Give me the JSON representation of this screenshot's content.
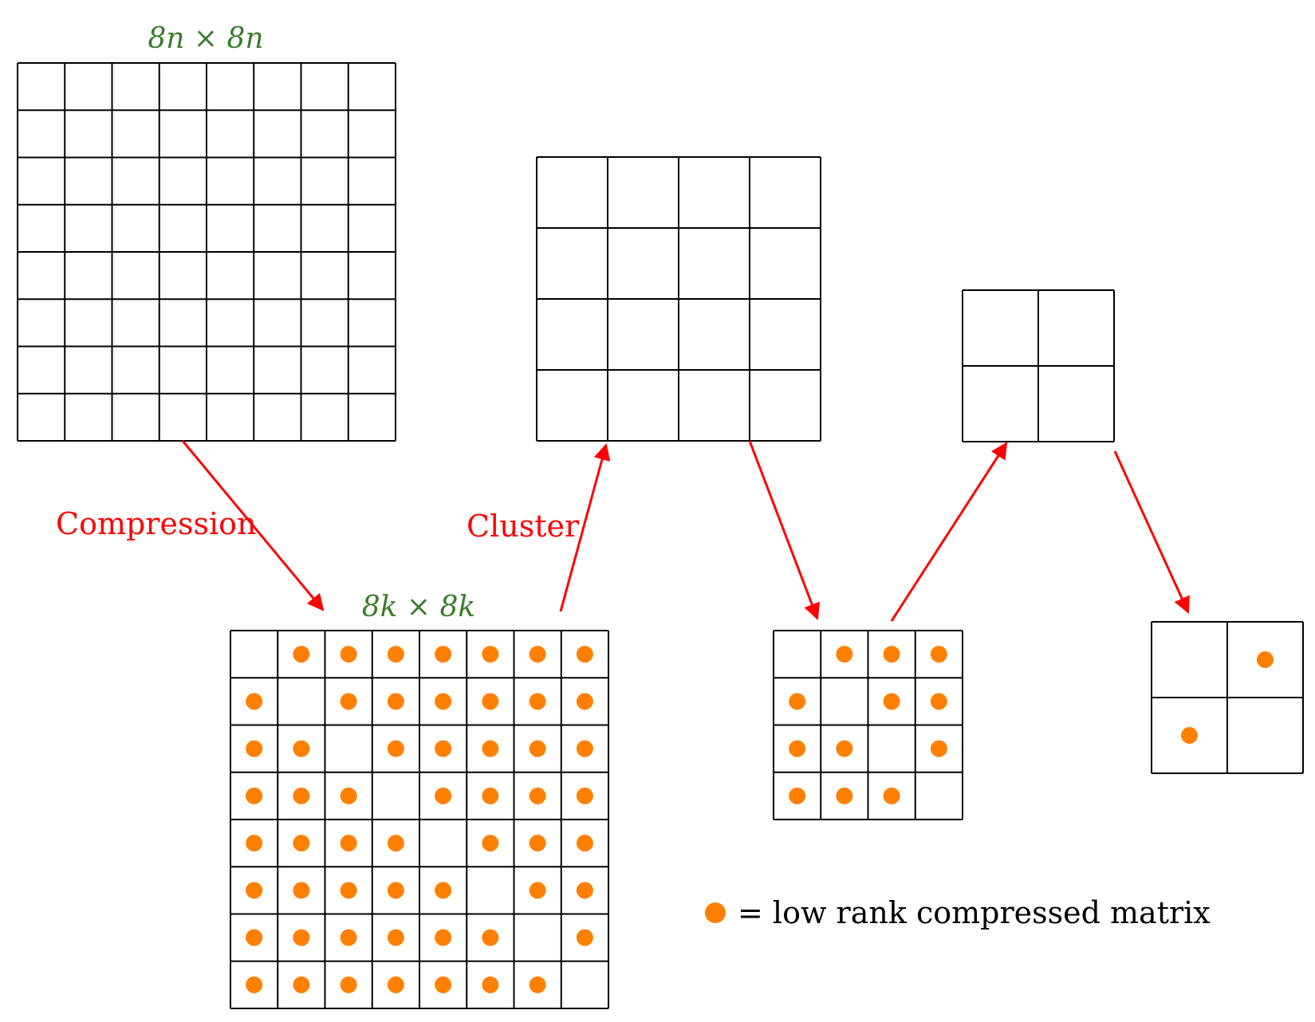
{
  "colors": {
    "dot": "#ff8000",
    "arrow": "#ff0000",
    "dimension_label": "#3a7d2c",
    "grid": "#000000"
  },
  "labels": {
    "top_matrix_size": "8n × 8n",
    "compressed_matrix_size": "8k × 8k",
    "compression": "Compression",
    "cluster": "Cluster",
    "legend_text": "= low rank compressed matrix"
  },
  "matrices": [
    {
      "id": "original-8n",
      "n": 8,
      "dots": "none"
    },
    {
      "id": "cluster-4x4",
      "n": 4,
      "dots": "none"
    },
    {
      "id": "cluster-2x2",
      "n": 2,
      "dots": "none"
    },
    {
      "id": "compressed-8k",
      "n": 8,
      "dots": "offdiag"
    },
    {
      "id": "compressed-4k",
      "n": 4,
      "dots": "offdiag"
    },
    {
      "id": "compressed-2k",
      "n": 2,
      "dots": "offdiag"
    }
  ]
}
